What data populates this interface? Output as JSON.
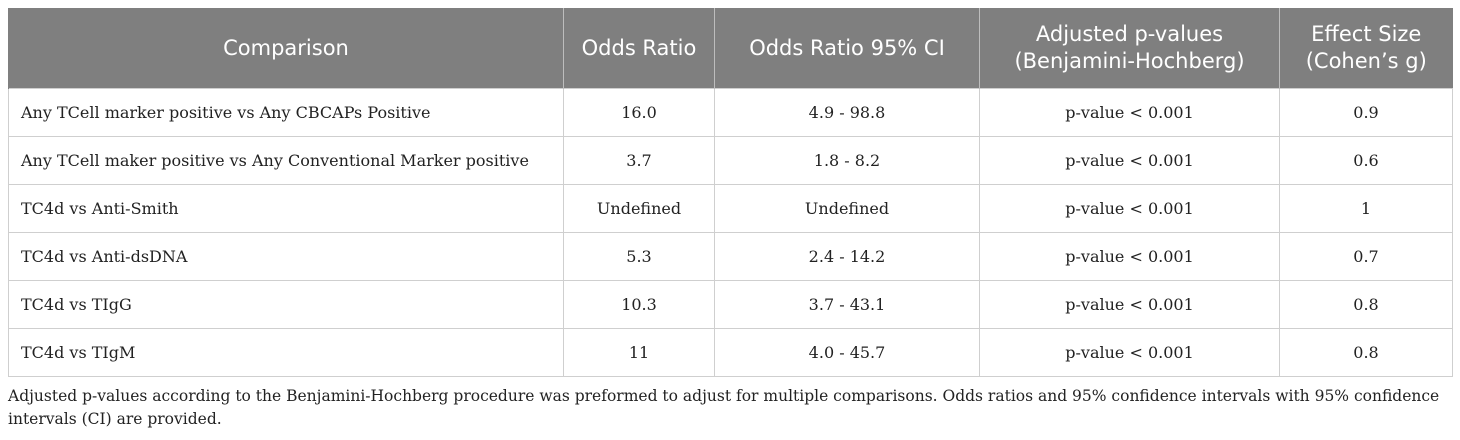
{
  "table": {
    "headers": [
      [
        "Comparison"
      ],
      [
        "Odds Ratio"
      ],
      [
        "Odds Ratio 95% CI"
      ],
      [
        "Adjusted p-values",
        "(Benjamini-Hochberg)"
      ],
      [
        "Effect Size",
        "(Cohen’s g)"
      ]
    ],
    "rows": [
      [
        "Any TCell marker positive vs Any CBCAPs Positive",
        "16.0",
        "4.9 - 98.8",
        "p-value < 0.001",
        "0.9"
      ],
      [
        "Any TCell maker positive vs Any Conventional Marker positive",
        "3.7",
        "1.8 - 8.2",
        "p-value < 0.001",
        "0.6"
      ],
      [
        "TC4d vs Anti-Smith",
        "Undefined",
        "Undefined",
        "p-value < 0.001",
        "1"
      ],
      [
        "TC4d vs Anti-dsDNA",
        "5.3",
        "2.4 - 14.2",
        "p-value < 0.001",
        "0.7"
      ],
      [
        "TC4d vs TIgG",
        "10.3",
        "3.7 - 43.1",
        "p-value < 0.001",
        "0.8"
      ],
      [
        "TC4d vs TIgM",
        "11",
        "4.0 - 45.7",
        "p-value < 0.001",
        "0.8"
      ]
    ]
  },
  "footnote": "Adjusted p-values according to the Benjamini-Hochberg procedure was preformed to adjust for multiple comparisons. Odds ratios and 95% confidence intervals with 95% confidence intervals (CI) are provided."
}
